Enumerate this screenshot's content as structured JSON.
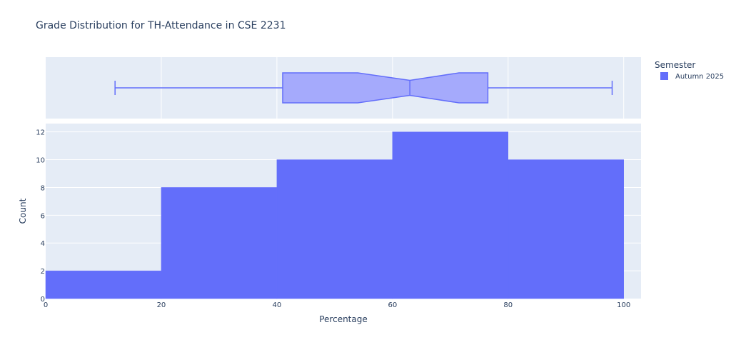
{
  "chart_data": {
    "title": "Grade Distribution for TH-Attendance in CSE 2231",
    "type": "histogram",
    "xlabel": "Percentage",
    "ylabel": "Count",
    "xlim": [
      0,
      103
    ],
    "ylim": [
      0,
      12.6
    ],
    "xticks": [
      0,
      20,
      40,
      60,
      80,
      100
    ],
    "yticks": [
      0,
      2,
      4,
      6,
      8,
      10,
      12
    ],
    "grid": true,
    "legend": {
      "title": "Semester",
      "placement": "top-right",
      "entries": [
        {
          "name": "Autumn 2025",
          "color": "#636efa"
        }
      ]
    },
    "histogram": {
      "bins": [
        {
          "x0": 0,
          "x1": 20,
          "count": 2
        },
        {
          "x0": 20,
          "x1": 40,
          "count": 8
        },
        {
          "x0": 40,
          "x1": 60,
          "count": 10
        },
        {
          "x0": 60,
          "x1": 80,
          "count": 12
        },
        {
          "x0": 80,
          "x1": 100,
          "count": 10
        }
      ]
    },
    "marginal_box": {
      "series": "Autumn 2025",
      "notched": true,
      "min": 12,
      "q1": 41,
      "median": 63,
      "q3": 76.5,
      "max": 98,
      "notch_low": 54,
      "notch_high": 71.5
    },
    "colors": {
      "bar": "#636efa",
      "box_fill": "#a5aafc",
      "plot_bg": "#e5ecf6",
      "grid": "#ffffff",
      "text": "#2a3f5f"
    }
  }
}
